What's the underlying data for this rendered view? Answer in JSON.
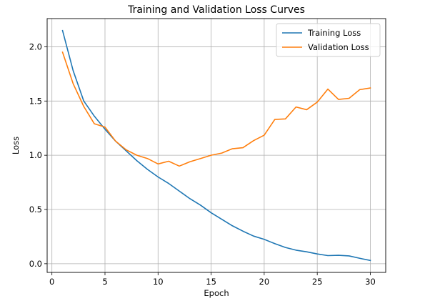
{
  "chart_data": {
    "type": "line",
    "title": "Training and Validation Loss Curves",
    "xlabel": "Epoch",
    "ylabel": "Loss",
    "xlim": [
      -0.45,
      31.45
    ],
    "ylim": [
      -0.08,
      2.26
    ],
    "xticks": [
      0,
      5,
      10,
      15,
      20,
      25,
      30
    ],
    "xtick_labels": [
      "0",
      "5",
      "10",
      "15",
      "20",
      "25",
      "30"
    ],
    "yticks": [
      0.0,
      0.5,
      1.0,
      1.5,
      2.0
    ],
    "ytick_labels": [
      "0.0",
      "0.5",
      "1.0",
      "1.5",
      "2.0"
    ],
    "grid": true,
    "legend_position": "upper-right",
    "x": [
      1,
      2,
      3,
      4,
      5,
      6,
      7,
      8,
      9,
      10,
      11,
      12,
      13,
      14,
      15,
      16,
      17,
      18,
      19,
      20,
      21,
      22,
      23,
      24,
      25,
      26,
      27,
      28,
      29,
      30
    ],
    "series": [
      {
        "name": "Training Loss",
        "color": "#1f77b4",
        "values": [
          2.15,
          1.78,
          1.5,
          1.36,
          1.24,
          1.13,
          1.04,
          0.95,
          0.87,
          0.8,
          0.74,
          0.67,
          0.6,
          0.54,
          0.47,
          0.41,
          0.35,
          0.3,
          0.255,
          0.225,
          0.185,
          0.15,
          0.125,
          0.11,
          0.09,
          0.075,
          0.078,
          0.072,
          0.05,
          0.03
        ]
      },
      {
        "name": "Validation Loss",
        "color": "#ff7f0e",
        "values": [
          1.95,
          1.66,
          1.45,
          1.29,
          1.26,
          1.13,
          1.05,
          1.0,
          0.97,
          0.92,
          0.945,
          0.9,
          0.94,
          0.97,
          1.0,
          1.02,
          1.06,
          1.07,
          1.135,
          1.185,
          1.33,
          1.335,
          1.445,
          1.42,
          1.49,
          1.61,
          1.515,
          1.525,
          1.605,
          1.62
        ]
      }
    ]
  }
}
